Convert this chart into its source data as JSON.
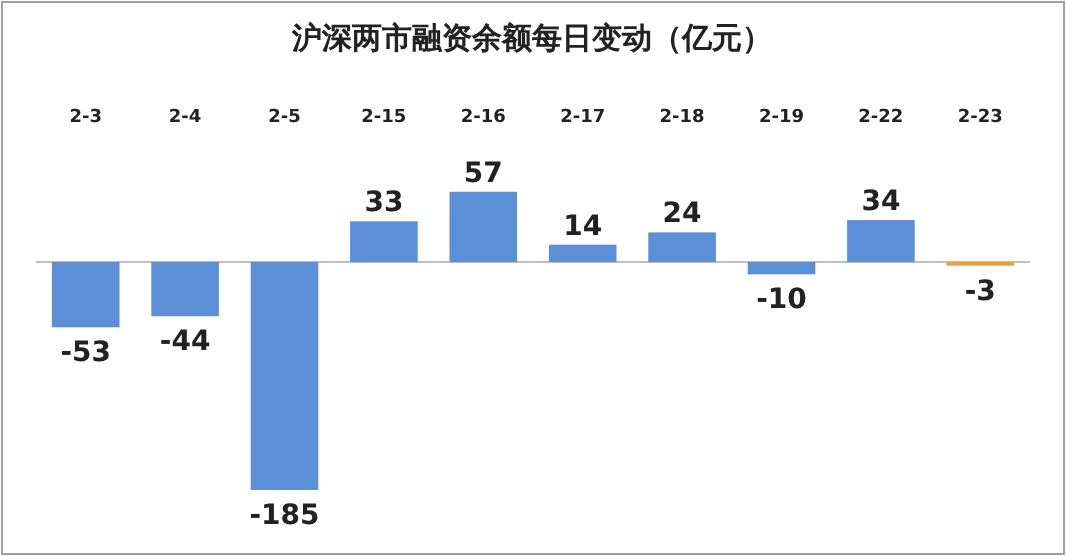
{
  "chart_data": {
    "type": "bar",
    "title": "沪深两市融资余额每日变动（亿元）",
    "categories": [
      "2-3",
      "2-4",
      "2-5",
      "2-15",
      "2-16",
      "2-17",
      "2-18",
      "2-19",
      "2-22",
      "2-23"
    ],
    "values": [
      -53,
      -44,
      -185,
      33,
      57,
      14,
      24,
      -10,
      34,
      -3
    ],
    "colors": [
      "#5b8fd8",
      "#5b8fd8",
      "#5b8fd8",
      "#5b8fd8",
      "#5b8fd8",
      "#5b8fd8",
      "#5b8fd8",
      "#5b8fd8",
      "#5b8fd8",
      "#f0a030"
    ],
    "data_labels": true
  }
}
